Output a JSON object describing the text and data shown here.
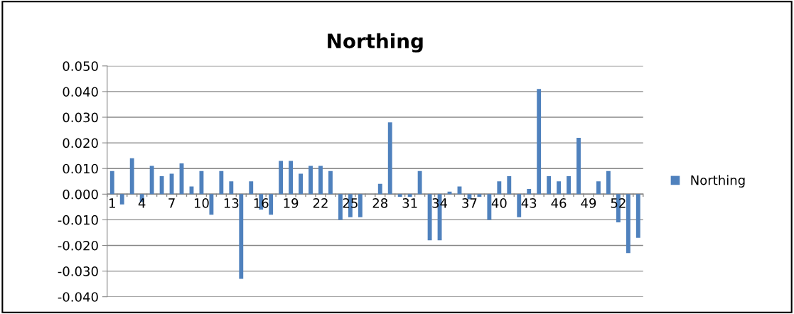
{
  "chart_data": {
    "type": "bar",
    "title": "Northing",
    "categories": [
      "1",
      null,
      null,
      "4",
      null,
      null,
      "7",
      null,
      null,
      "10",
      null,
      null,
      "13",
      null,
      null,
      "16",
      null,
      null,
      "19",
      null,
      null,
      "22",
      null,
      null,
      "25",
      null,
      null,
      "28",
      null,
      null,
      "31",
      null,
      null,
      "34",
      null,
      null,
      "37",
      null,
      null,
      "40",
      null,
      null,
      "43",
      null,
      null,
      "46",
      null,
      null,
      "49",
      null,
      null,
      "52",
      null,
      null
    ],
    "series": [
      {
        "name": "Northing",
        "color": "#4f81bd",
        "values": [
          0.009,
          -0.004,
          0.014,
          -0.003,
          0.011,
          0.007,
          0.008,
          0.012,
          0.003,
          0.009,
          -0.008,
          0.009,
          0.005,
          -0.033,
          0.005,
          -0.006,
          -0.008,
          0.013,
          0.013,
          0.008,
          0.011,
          0.011,
          0.009,
          -0.01,
          -0.009,
          -0.009,
          0,
          0.004,
          0.028,
          -0.001,
          -0.001,
          0.009,
          -0.018,
          -0.018,
          0.001,
          0.003,
          -0.002,
          -0.001,
          -0.01,
          0.005,
          0.007,
          -0.009,
          0.002,
          0.041,
          0.007,
          0.005,
          0.007,
          0.022,
          0,
          0.005,
          0.009,
          -0.011,
          -0.023,
          -0.017
        ]
      }
    ],
    "ylim": [
      -0.04,
      0.05
    ],
    "yticks": [
      {
        "value": -0.04,
        "label": "-0.040"
      },
      {
        "value": -0.03,
        "label": "-0.030"
      },
      {
        "value": -0.02,
        "label": "-0.020"
      },
      {
        "value": -0.01,
        "label": "-0.010"
      },
      {
        "value": 0,
        "label": "0.000"
      },
      {
        "value": 0.01,
        "label": "0.010"
      },
      {
        "value": 0.02,
        "label": "0.020"
      },
      {
        "value": 0.03,
        "label": "0.030"
      },
      {
        "value": 0.04,
        "label": "0.040"
      },
      {
        "value": 0.05,
        "label": "0.050"
      }
    ],
    "grid": "y",
    "legend": "right"
  }
}
